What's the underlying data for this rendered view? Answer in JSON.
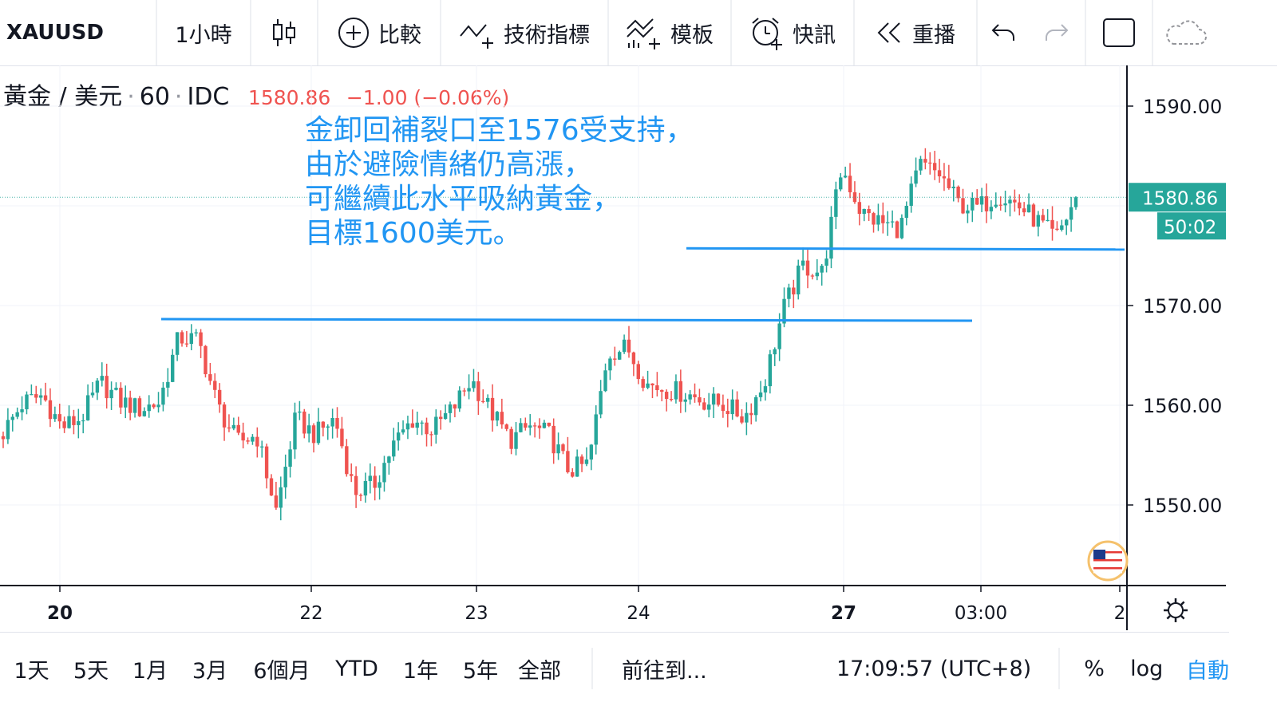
{
  "toolbar": {
    "symbol": "XAUUSD",
    "interval": "1小時",
    "compare_label": "比較",
    "indicators_label": "技術指標",
    "templates_label": "模板",
    "alerts_label": "快訊",
    "replay_label": "重播"
  },
  "legend": {
    "name": "黃金 / 美元",
    "interval": "60",
    "exchange": "IDC",
    "price": "1580.86",
    "change": "−1.00 (−0.06%)"
  },
  "annotation": "金卸回補裂口至1576受支持，\n由於避險情緒仍高漲，\n可繼續此水平吸納黃金，\n目標1600美元。",
  "price_scale": {
    "current_price_label": "1580.86",
    "countdown_label": "50:02"
  },
  "time_axis": {
    "labels": [
      "20",
      "22",
      "23",
      "24",
      "27",
      "03:00",
      "2"
    ]
  },
  "bottom": {
    "ranges": [
      "1天",
      "5天",
      "1月",
      "3月",
      "6個月",
      "YTD",
      "1年",
      "5年",
      "全部"
    ],
    "goto_label": "前往到...",
    "clock": "17:09:57 (UTC+8)",
    "percent_label": "%",
    "log_label": "log",
    "auto_label": "自動"
  },
  "colors": {
    "up": "#26a69a",
    "down": "#ef5350",
    "hline": "#2196f3",
    "annotation": "#2196f3"
  },
  "chart_data": {
    "type": "candlestick",
    "symbol": "XAUUSD",
    "interval": "60",
    "y_ticks": [
      1550.0,
      1560.0,
      1570.0,
      1590.0
    ],
    "ylim": [
      1543.0,
      1595.5
    ],
    "last_price": 1580.86,
    "support_levels": [
      1568.6,
      1575.7
    ],
    "close_path": [
      1557.3,
      1560.2,
      1561.0,
      1557.8,
      1558.7,
      1562.3,
      1560.4,
      1559.6,
      1560.3,
      1566.8,
      1566.5,
      1559.9,
      1556.3,
      1557.0,
      1549.4,
      1558.7,
      1557.0,
      1558.7,
      1551.3,
      1552.0,
      1556.0,
      1558.6,
      1557.5,
      1559.5,
      1562.6,
      1559.4,
      1556.5,
      1557.9,
      1557.0,
      1553.5,
      1554.1,
      1565.3,
      1565.8,
      1562.1,
      1561.6,
      1561.2,
      1560.4,
      1560.0,
      1558.8,
      1562.1,
      1569.6,
      1574.0,
      1573.3,
      1583.9,
      1579.3,
      1578.3,
      1577.7,
      1584.1,
      1583.2,
      1580.2,
      1579.8,
      1581.2,
      1580.1,
      1578.5,
      1576.7,
      1580.86
    ],
    "x_labels": [
      "20",
      "22",
      "23",
      "24",
      "27",
      "03:00",
      "2"
    ]
  }
}
